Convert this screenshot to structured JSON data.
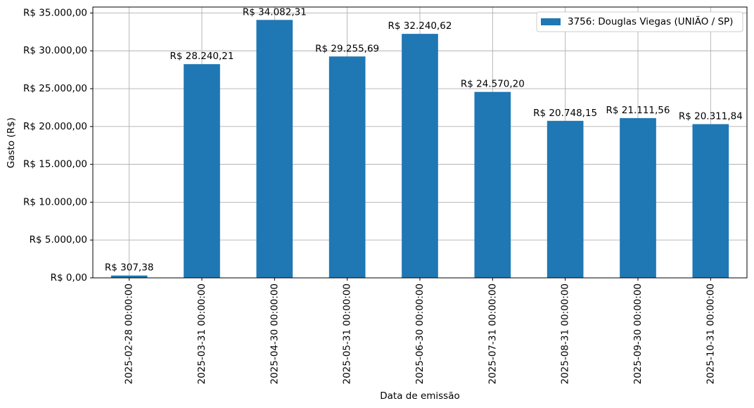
{
  "chart_data": {
    "type": "bar",
    "x_label": "Data de emissão",
    "y_label": "Gasto (R$)",
    "categories": [
      "2025-02-28 00:00:00",
      "2025-03-31 00:00:00",
      "2025-04-30 00:00:00",
      "2025-05-31 00:00:00",
      "2025-06-30 00:00:00",
      "2025-07-31 00:00:00",
      "2025-08-31 00:00:00",
      "2025-09-30 00:00:00",
      "2025-10-31 00:00:00"
    ],
    "series": [
      {
        "name": "3756: Douglas Viegas (UNIÃO / SP)",
        "color": "#1f77b4",
        "values": [
          307.38,
          28240.21,
          34082.31,
          29255.69,
          32240.62,
          24570.2,
          20748.15,
          21111.56,
          20311.84
        ],
        "value_labels": [
          "R$ 307,38",
          "R$ 28.240,21",
          "R$ 34.082,31",
          "R$ 29.255,69",
          "R$ 32.240,62",
          "R$ 24.570,20",
          "R$ 20.748,15",
          "R$ 21.111,56",
          "R$ 20.311,84"
        ]
      }
    ],
    "ylim": [
      0,
      35786
    ],
    "yticks": [
      {
        "value": 0,
        "label": "R$ 0,00"
      },
      {
        "value": 5000,
        "label": "R$ 5.000,00"
      },
      {
        "value": 10000,
        "label": "R$ 10.000,00"
      },
      {
        "value": 15000,
        "label": "R$ 15.000,00"
      },
      {
        "value": 20000,
        "label": "R$ 20.000,00"
      },
      {
        "value": 25000,
        "label": "R$ 25.000,00"
      },
      {
        "value": 30000,
        "label": "R$ 30.000,00"
      },
      {
        "value": 35000,
        "label": "R$ 35.000,00"
      }
    ],
    "grid": true,
    "legend": "upper right"
  }
}
